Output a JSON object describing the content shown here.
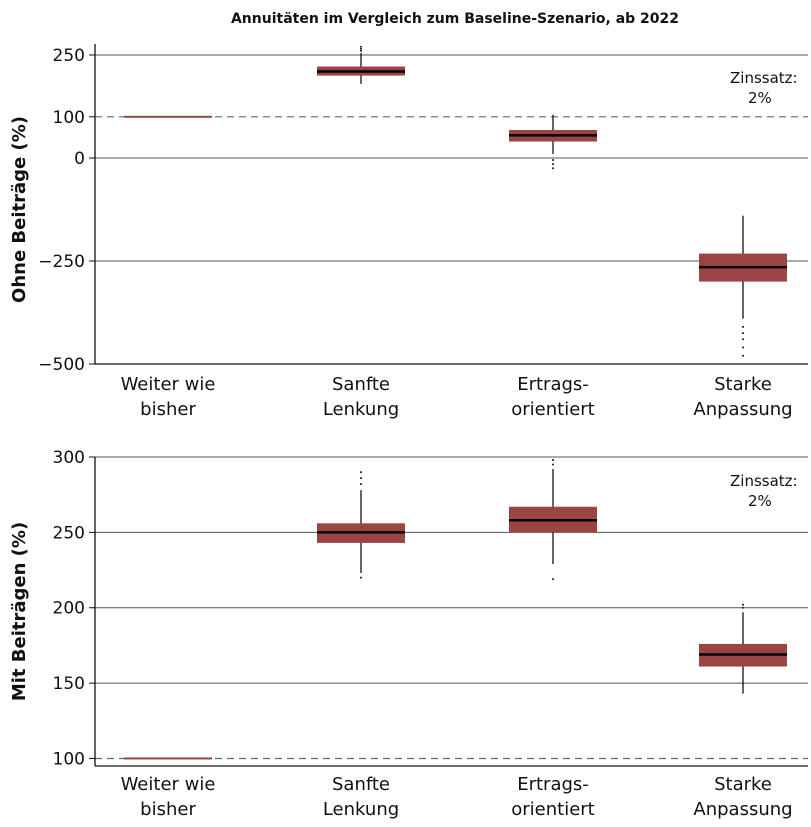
{
  "title": "Annuitäten im Vergleich zum Baseline-Szenario, ab 2022",
  "colors": {
    "box": "#9b4444",
    "median": "#000000",
    "grid": "#555555",
    "ref": "#666666"
  },
  "chart_data": [
    {
      "type": "box",
      "ylabel": "Ohne Beiträge (%)",
      "ylim": [
        -500,
        250
      ],
      "ticks": [
        250,
        100,
        0,
        -250,
        -500
      ],
      "reference_line": 100,
      "annotation": [
        "Zinssatz:",
        "2%"
      ],
      "categories": [
        {
          "label": [
            "Weiter wie",
            "bisher"
          ],
          "q1": 100,
          "median": 100,
          "q3": 100,
          "whisker_low": 100,
          "whisker_high": 100,
          "outliers": []
        },
        {
          "label": [
            "Sanfte",
            "Lenkung"
          ],
          "q1": 200,
          "median": 210,
          "q3": 222,
          "whisker_low": 180,
          "whisker_high": 255,
          "outliers": [
            260,
            265,
            270
          ]
        },
        {
          "label": [
            "Ertrags-",
            "orientiert"
          ],
          "q1": 40,
          "median": 55,
          "q3": 68,
          "whisker_low": 10,
          "whisker_high": 105,
          "outliers": [
            -5,
            -15,
            -25
          ]
        },
        {
          "label": [
            "Starke",
            "Anpassung"
          ],
          "q1": -300,
          "median": -265,
          "q3": -232,
          "whisker_low": -390,
          "whisker_high": -140,
          "outliers": [
            -410,
            -425,
            -440,
            -460,
            -480
          ]
        }
      ]
    },
    {
      "type": "box",
      "ylabel": "Mit Beiträgen (%)",
      "ylim": [
        95,
        300
      ],
      "ticks": [
        300,
        250,
        200,
        150,
        100
      ],
      "reference_line": 100,
      "annotation": [
        "Zinssatz:",
        "2%"
      ],
      "categories": [
        {
          "label": [
            "Weiter wie",
            "bisher"
          ],
          "q1": 100,
          "median": 100,
          "q3": 100,
          "whisker_low": 100,
          "whisker_high": 100,
          "outliers": []
        },
        {
          "label": [
            "Sanfte",
            "Lenkung"
          ],
          "q1": 243,
          "median": 250,
          "q3": 256,
          "whisker_low": 223,
          "whisker_high": 278,
          "outliers": [
            220,
            282,
            286,
            290
          ]
        },
        {
          "label": [
            "Ertrags-",
            "orientiert"
          ],
          "q1": 250,
          "median": 258,
          "q3": 267,
          "whisker_low": 229,
          "whisker_high": 292,
          "outliers": [
            219,
            295,
            298
          ]
        },
        {
          "label": [
            "Starke",
            "Anpassung"
          ],
          "q1": 161,
          "median": 169,
          "q3": 176,
          "whisker_low": 143,
          "whisker_high": 197,
          "outliers": [
            200,
            202
          ]
        }
      ]
    }
  ]
}
